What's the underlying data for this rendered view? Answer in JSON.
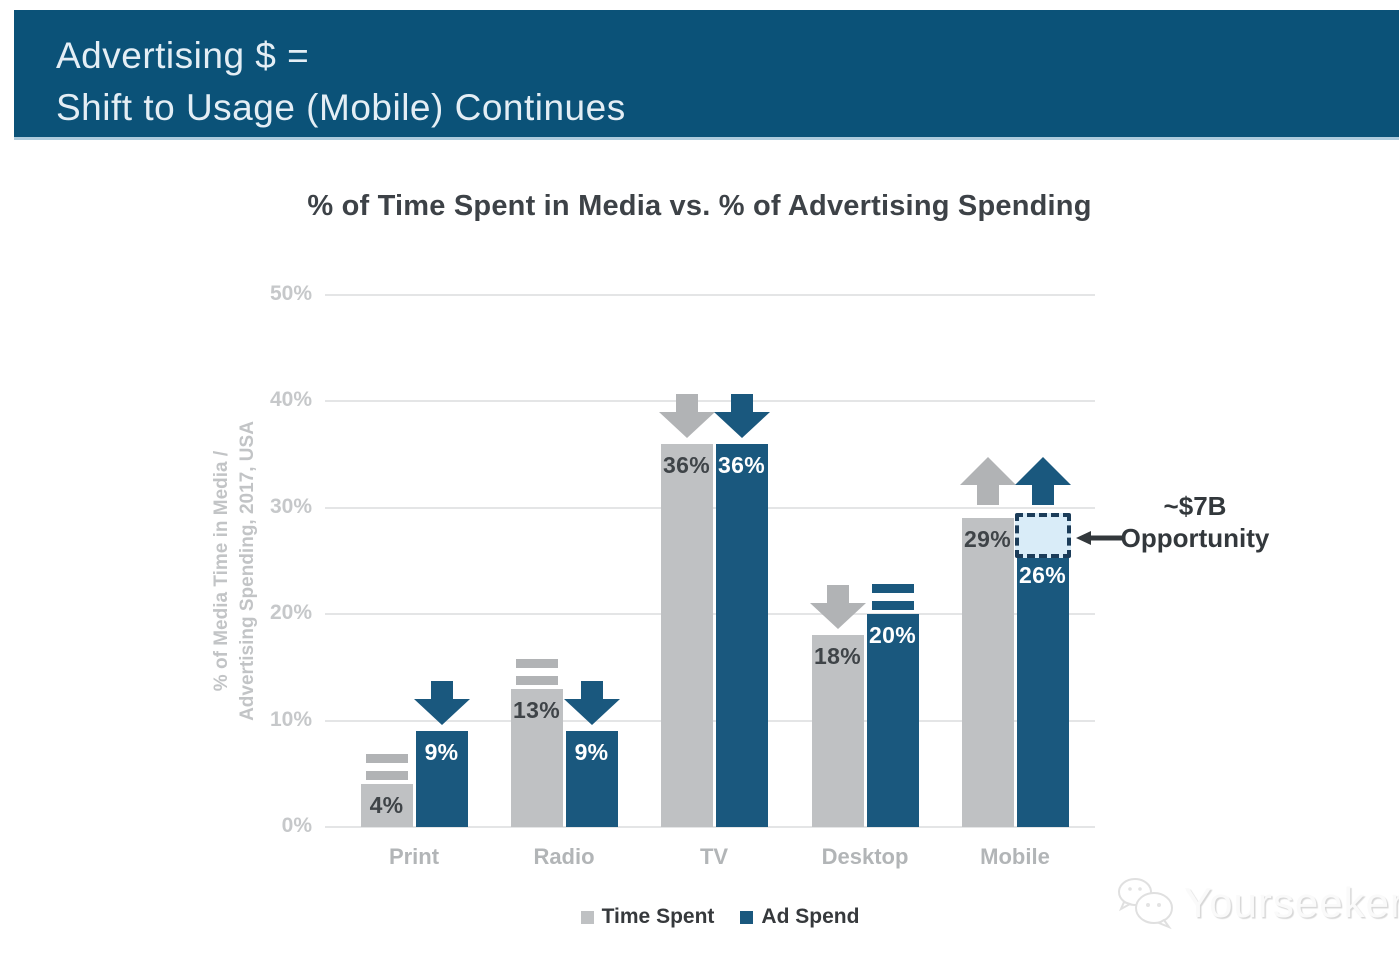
{
  "header": {
    "line1": "Advertising $ =",
    "line2": "Shift to Usage (Mobile) Continues"
  },
  "chart_data": {
    "type": "bar",
    "title": "% of Time Spent in Media vs. % of Advertising Spending",
    "ylabel": "% of Media Time in Media / Advertising Spending, 2017, USA",
    "ylabel_line1": "% of Media Time in Media /",
    "ylabel_line2": "Advertising Spending, 2017, USA",
    "categories": [
      "Print",
      "Radio",
      "TV",
      "Desktop",
      "Mobile"
    ],
    "series": [
      {
        "name": "Time Spent",
        "values": [
          4,
          13,
          36,
          18,
          29
        ],
        "trends": [
          "equal",
          "equal",
          "down",
          "down",
          "up"
        ]
      },
      {
        "name": "Ad Spend",
        "values": [
          9,
          9,
          36,
          20,
          26
        ],
        "trends": [
          "down",
          "down",
          "down",
          "equal",
          "up"
        ]
      }
    ],
    "yticks": [
      "0%",
      "10%",
      "20%",
      "30%",
      "40%",
      "50%"
    ],
    "ylim": [
      0,
      50
    ],
    "grid": true,
    "legend_position": "bottom",
    "annotation": {
      "line1": "~$7B",
      "line2": "Opportunity",
      "target_category": "Mobile",
      "target_series": "Ad Spend"
    }
  },
  "legend": {
    "items": [
      {
        "label": "Time Spent",
        "color": "#bfc1c3"
      },
      {
        "label": "Ad Spend",
        "color": "#1a587e"
      }
    ]
  },
  "watermark": {
    "text": "Yourseeker"
  },
  "colors": {
    "banner_bg": "#0b5278",
    "banner_text": "#e4eef5",
    "bar_gray": "#bfc1c3",
    "bar_blue": "#1a587e",
    "label_dark": "#3f4448",
    "label_white": "#ffffff",
    "gridline": "#e4e5e6",
    "tick_text": "#c6c8ca",
    "opportunity_fill": "#d9ecf8",
    "opportunity_border": "#1b3c59",
    "annotation_text": "#33383c"
  }
}
